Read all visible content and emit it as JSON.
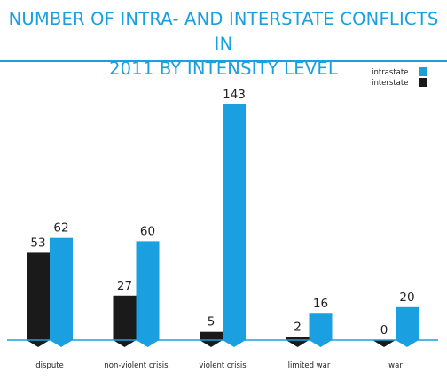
{
  "chart_data": {
    "type": "bar",
    "title_lines": [
      "NUMBER OF INTRA- AND INTERSTATE CONFLICTS IN",
      "2011 BY INTENSITY LEVEL"
    ],
    "categories": [
      "dispute",
      "non-violent crisis",
      "violent crisis",
      "limited war",
      "war"
    ],
    "series": [
      {
        "name": "interstate :",
        "values": [
          53,
          27,
          5,
          2,
          0
        ]
      },
      {
        "name": "intrastate :",
        "values": [
          62,
          60,
          143,
          16,
          20
        ]
      }
    ],
    "data_labels": true,
    "legend_position": "top-right",
    "grid": false,
    "colors": {
      "interstate": "#1a1a1a",
      "intrastate": "#1a9fe0",
      "title": "#1a9fe0"
    }
  }
}
